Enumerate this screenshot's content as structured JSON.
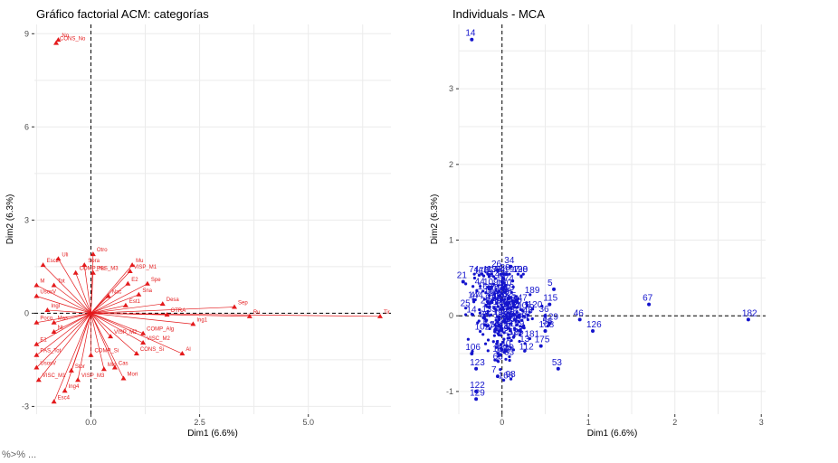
{
  "footer_text": "%>% ...",
  "chart_data": [
    {
      "type": "scatter",
      "title": "Gráfico factorial ACM: categorías",
      "xlabel": "Dim1 (6.6%)",
      "ylabel": "Dim2 (6.3%)",
      "xlim": [
        -1.3,
        6.9
      ],
      "ylim": [
        -3.25,
        9.3
      ],
      "xticks": [
        0,
        2.5,
        5
      ],
      "xtick_labels": [
        "0.0",
        "2.5",
        "5.0"
      ],
      "yticks": [
        -3,
        0,
        3,
        6,
        9
      ],
      "ytick_labels": [
        "-3",
        "0",
        "3",
        "6",
        "9"
      ],
      "grid": true,
      "reference_lines": "dashed at x=0 and y=0",
      "marker": "triangle",
      "color": "#e41a1c",
      "points": [
        {
          "label": "No",
          "x": -0.75,
          "y": 8.8
        },
        {
          "label": "CONS_No",
          "x": -0.8,
          "y": 8.7
        },
        {
          "label": "Otro",
          "x": 0.05,
          "y": 1.9
        },
        {
          "label": "Mu",
          "x": 0.95,
          "y": 1.55
        },
        {
          "label": "Uli",
          "x": -0.75,
          "y": 1.75
        },
        {
          "label": "Sora",
          "x": -0.15,
          "y": 1.55
        },
        {
          "label": "Esc2",
          "x": -1.1,
          "y": 1.55
        },
        {
          "label": "VISP_M1",
          "x": 0.9,
          "y": 1.35
        },
        {
          "label": "COMP_No",
          "x": -0.35,
          "y": 1.3
        },
        {
          "label": "PSS_M3",
          "x": 0.05,
          "y": 1.3
        },
        {
          "label": "E2",
          "x": 0.85,
          "y": 0.95
        },
        {
          "label": "Spe",
          "x": 1.3,
          "y": 0.95
        },
        {
          "label": "M",
          "x": -1.25,
          "y": 0.9
        },
        {
          "label": "Tot",
          "x": -0.85,
          "y": 0.9
        },
        {
          "label": "Sna",
          "x": 1.1,
          "y": 0.6
        },
        {
          "label": "UsosV",
          "x": -1.25,
          "y": 0.55
        },
        {
          "label": "Nac",
          "x": 0.4,
          "y": 0.55
        },
        {
          "label": "Desa",
          "x": 1.65,
          "y": 0.3
        },
        {
          "label": "Sep",
          "x": 3.3,
          "y": 0.2
        },
        {
          "label": "Est1",
          "x": 0.8,
          "y": 0.25
        },
        {
          "label": "Ingl",
          "x": -1.0,
          "y": 0.1
        },
        {
          "label": "Ru",
          "x": 3.65,
          "y": -0.1
        },
        {
          "label": "Tir",
          "x": 6.65,
          "y": -0.1
        },
        {
          "label": "OTRA",
          "x": 1.75,
          "y": -0.05
        },
        {
          "label": "Ing1",
          "x": 2.35,
          "y": -0.35
        },
        {
          "label": "Poco",
          "x": -1.25,
          "y": -0.3
        },
        {
          "label": "Mas",
          "x": -0.85,
          "y": -0.3
        },
        {
          "label": "COMP_Alg",
          "x": 1.2,
          "y": -0.65
        },
        {
          "label": "Nt",
          "x": -0.85,
          "y": -0.6
        },
        {
          "label": "VISP_M2",
          "x": 0.45,
          "y": -0.75
        },
        {
          "label": "VISC_M2",
          "x": 1.2,
          "y": -0.95
        },
        {
          "label": "E1",
          "x": -1.25,
          "y": -1.0
        },
        {
          "label": "Al",
          "x": 2.1,
          "y": -1.3
        },
        {
          "label": "CONS_Si",
          "x": 1.05,
          "y": -1.3
        },
        {
          "label": "COMP_Si",
          "x": 0.0,
          "y": -1.35
        },
        {
          "label": "PAS_Tot",
          "x": -1.25,
          "y": -1.35
        },
        {
          "label": "Cas",
          "x": 0.55,
          "y": -1.75
        },
        {
          "label": "Min",
          "x": 0.3,
          "y": -1.8
        },
        {
          "label": "Stor",
          "x": -0.45,
          "y": -1.85
        },
        {
          "label": "UsosV",
          "x": -1.25,
          "y": -1.75
        },
        {
          "label": "Mori",
          "x": 0.75,
          "y": -2.1
        },
        {
          "label": "VISC_M1",
          "x": -1.2,
          "y": -2.15
        },
        {
          "label": "VISP_M3",
          "x": -0.3,
          "y": -2.15
        },
        {
          "label": "Ing4",
          "x": -0.6,
          "y": -2.5
        },
        {
          "label": "Esc4",
          "x": -0.85,
          "y": -2.85
        }
      ]
    },
    {
      "type": "scatter",
      "title": "Individuals - MCA",
      "xlabel": "Dim1 (6.6%)",
      "ylabel": "Dim2 (6.3%)",
      "xlim": [
        -0.5,
        3.05
      ],
      "ylim": [
        -1.3,
        3.85
      ],
      "xticks": [
        0,
        1,
        2,
        3
      ],
      "yticks": [
        -1,
        0,
        1,
        2,
        3
      ],
      "grid": true,
      "reference_lines": "dashed at x=0 and y=0",
      "marker": "circle",
      "color": "#1414cc",
      "cluster_note": "dense unlabeled cloud near origin",
      "points": [
        {
          "label": "14",
          "x": -0.35,
          "y": 3.65
        },
        {
          "label": "67",
          "x": 1.7,
          "y": 0.15
        },
        {
          "label": "182",
          "x": 2.85,
          "y": -0.05
        },
        {
          "label": "46",
          "x": 0.9,
          "y": -0.05
        },
        {
          "label": "126",
          "x": 1.05,
          "y": -0.2
        },
        {
          "label": "53",
          "x": 0.65,
          "y": -0.7
        },
        {
          "label": "5",
          "x": 0.6,
          "y": 0.35
        },
        {
          "label": "115",
          "x": 0.55,
          "y": 0.15
        },
        {
          "label": "36",
          "x": 0.5,
          "y": 0.0
        },
        {
          "label": "129",
          "x": 0.55,
          "y": -0.1
        },
        {
          "label": "108",
          "x": 0.5,
          "y": -0.2
        },
        {
          "label": "175",
          "x": 0.45,
          "y": -0.4
        },
        {
          "label": "34",
          "x": 0.1,
          "y": 0.65
        },
        {
          "label": "88",
          "x": 0.05,
          "y": 0.55
        },
        {
          "label": "26",
          "x": -0.05,
          "y": 0.6
        },
        {
          "label": "10",
          "x": 0.0,
          "y": 0.45
        },
        {
          "label": "21",
          "x": -0.45,
          "y": 0.45
        },
        {
          "label": "7",
          "x": -0.05,
          "y": -0.8
        },
        {
          "label": "123",
          "x": -0.3,
          "y": -0.7
        },
        {
          "label": "106",
          "x": -0.35,
          "y": -0.5
        },
        {
          "label": "122",
          "x": -0.3,
          "y": -1.0
        },
        {
          "label": "129",
          "x": -0.3,
          "y": -1.1
        },
        {
          "label": "13",
          "x": 0.15,
          "y": -0.05
        },
        {
          "label": "140",
          "x": 0.0,
          "y": -0.45
        }
      ]
    }
  ]
}
